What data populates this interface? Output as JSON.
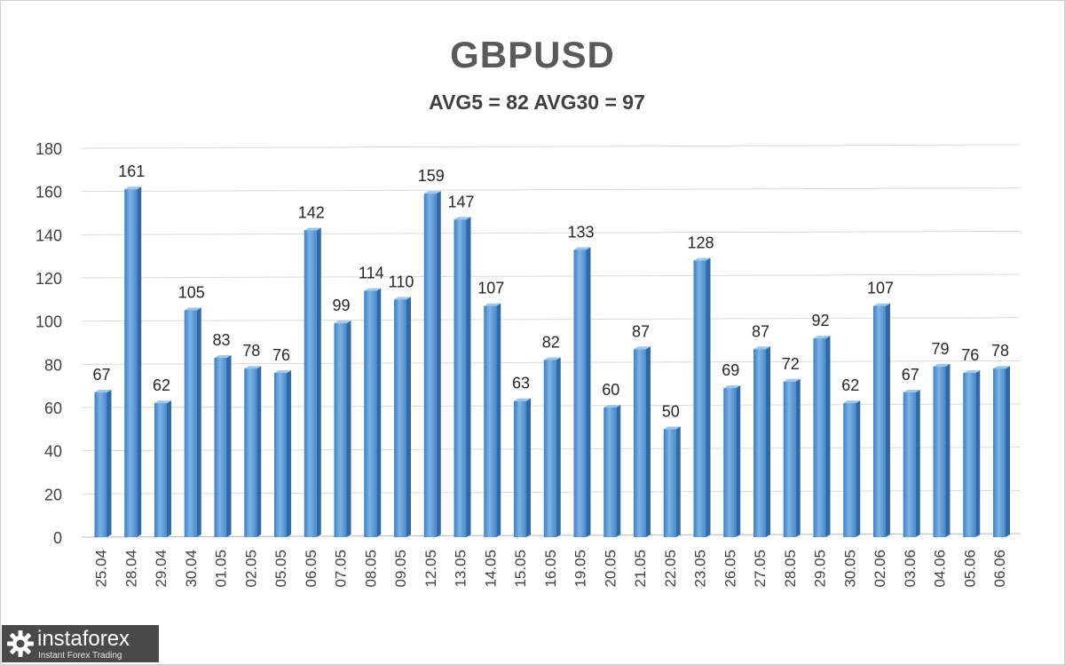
{
  "chart_data": {
    "type": "bar",
    "title": "GBPUSD",
    "subtitle": "AVG5 = 82 AVG30 = 97",
    "categories": [
      "25.04",
      "28.04",
      "29.04",
      "30.04",
      "01.05",
      "02.05",
      "05.05",
      "06.05",
      "07.05",
      "08.05",
      "09.05",
      "12.05",
      "13.05",
      "14.05",
      "15.05",
      "16.05",
      "19.05",
      "20.05",
      "21.05",
      "22.05",
      "23.05",
      "26.05",
      "27.05",
      "28.05",
      "29.05",
      "30.05",
      "02.06",
      "03.06",
      "04.06",
      "05.06",
      "06.06"
    ],
    "values": [
      67,
      161,
      62,
      105,
      83,
      78,
      76,
      142,
      99,
      114,
      110,
      159,
      147,
      107,
      63,
      82,
      133,
      60,
      87,
      50,
      128,
      69,
      87,
      72,
      92,
      62,
      107,
      67,
      79,
      76,
      78
    ],
    "ylim": [
      0,
      180
    ],
    "yticks": [
      0,
      20,
      40,
      60,
      80,
      100,
      120,
      140,
      160,
      180
    ],
    "grid": true,
    "data_labels": true,
    "bar_color": "#5b9bd5"
  },
  "watermark": {
    "name": "instaforex",
    "tagline": "Instant Forex Trading"
  }
}
